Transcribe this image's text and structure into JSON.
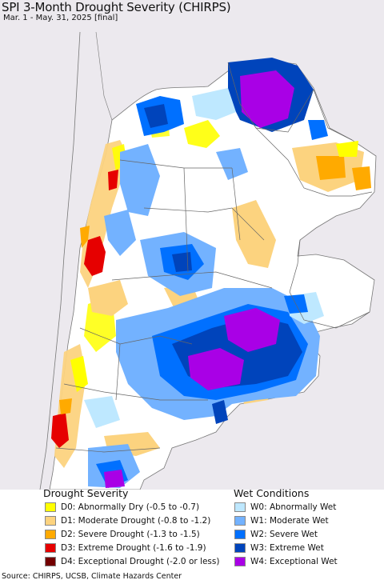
{
  "header": {
    "title": "SPI 3-Month Drought Severity (CHIRPS)",
    "subtitle": "Mar. 1 - May. 31, 2025 [final]"
  },
  "legend": {
    "drought_heading": "Drought Severity",
    "wet_heading": "Wet Conditions",
    "drought_items": [
      {
        "label": "D0: Abnormally Dry (-0.5 to -0.7)",
        "color": "#ffff00"
      },
      {
        "label": "D1: Moderate Drought (-0.8 to -1.2)",
        "color": "#fcd37f"
      },
      {
        "label": "D2: Severe Drought (-1.3 to -1.5)",
        "color": "#ffaa00"
      },
      {
        "label": "D3: Extreme Drought (-1.6 to -1.9)",
        "color": "#e60000"
      },
      {
        "label": "D4: Exceptional Drought (-2.0 or less)",
        "color": "#730000"
      }
    ],
    "wet_items": [
      {
        "label": "W0: Abnormally Wet",
        "color": "#bee8ff"
      },
      {
        "label": "W1: Moderate Wet",
        "color": "#73b2ff"
      },
      {
        "label": "W2: Severe Wet",
        "color": "#0070ff"
      },
      {
        "label": "W3: Extreme Wet",
        "color": "#0044bb"
      },
      {
        "label": "W4: Exceptional Wet",
        "color": "#a900e6"
      }
    ]
  },
  "footer": {
    "source": "Source: CHIRPS, UCSB, Climate Hazards Center"
  },
  "colors": {
    "outside_region": "#ece9ee",
    "no_anomaly": "#ffffff",
    "borders": "#666666"
  }
}
